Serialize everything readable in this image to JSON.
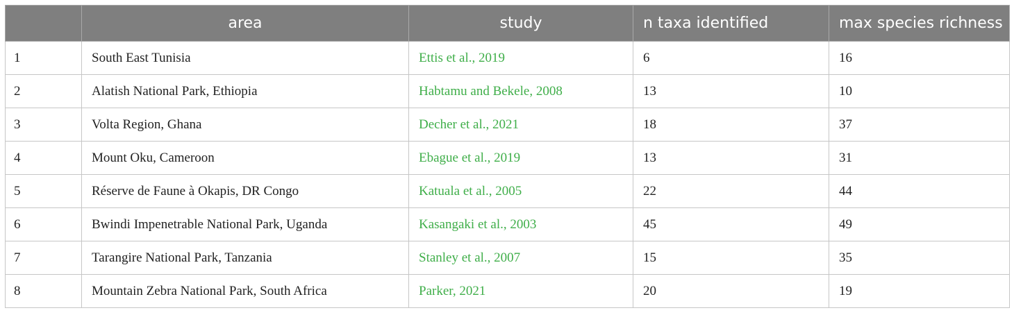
{
  "table": {
    "headers": [
      "",
      "area",
      "study",
      "n taxa identified",
      "max species richness"
    ],
    "rows": [
      {
        "index": "1",
        "area": "South East Tunisia",
        "study": "Ettis et al., 2019",
        "n_taxa": "6",
        "max_richness": "16"
      },
      {
        "index": "2",
        "area": "Alatish National Park, Ethiopia",
        "study": "Habtamu and Bekele, 2008",
        "n_taxa": "13",
        "max_richness": "10"
      },
      {
        "index": "3",
        "area": "Volta Region, Ghana",
        "study": "Decher et al., 2021",
        "n_taxa": "18",
        "max_richness": "37"
      },
      {
        "index": "4",
        "area": "Mount Oku, Cameroon",
        "study": "Ebague et al., 2019",
        "n_taxa": "13",
        "max_richness": "31"
      },
      {
        "index": "5",
        "area": "Réserve de Faune à Okapis, DR Congo",
        "study": "Katuala et al., 2005",
        "n_taxa": "22",
        "max_richness": "44"
      },
      {
        "index": "6",
        "area": "Bwindi Impenetrable National Park, Uganda",
        "study": "Kasangaki et al., 2003",
        "n_taxa": "45",
        "max_richness": "49"
      },
      {
        "index": "7",
        "area": "Tarangire National Park, Tanzania",
        "study": "Stanley et al., 2007",
        "n_taxa": "15",
        "max_richness": "35"
      },
      {
        "index": "8",
        "area": "Mountain Zebra National Park, South Africa",
        "study": "Parker, 2021",
        "n_taxa": "20",
        "max_richness": "19"
      }
    ]
  },
  "colors": {
    "header_bg": "#7f7f7f",
    "header_text": "#ffffff",
    "study_link": "#3fae49",
    "border": "#c6c6c6"
  }
}
